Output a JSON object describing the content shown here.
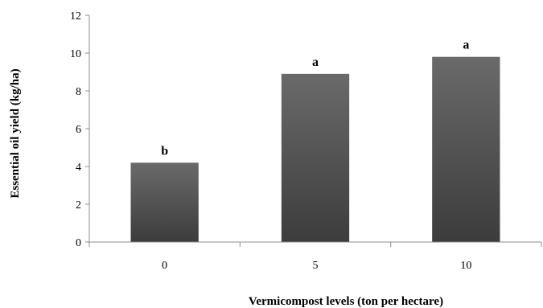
{
  "chart_data": {
    "type": "bar",
    "categories": [
      "0",
      "5",
      "10"
    ],
    "series": [
      {
        "values": [
          4.2,
          8.9,
          9.8
        ],
        "labels": [
          "b",
          "a",
          "a"
        ]
      }
    ],
    "xlabel": "Vermicompost levels (ton per hectare)",
    "ylabel": "Essential oil yield (kg/ha)",
    "ylim": [
      0,
      12
    ],
    "yticks": [
      0,
      2,
      4,
      6,
      8,
      10,
      12
    ],
    "grid": false,
    "legend": "none",
    "colors": {
      "bar_top": "#6a6a6a",
      "bar_bottom": "#3c3c3c",
      "axis": "#8c8c8c"
    }
  }
}
